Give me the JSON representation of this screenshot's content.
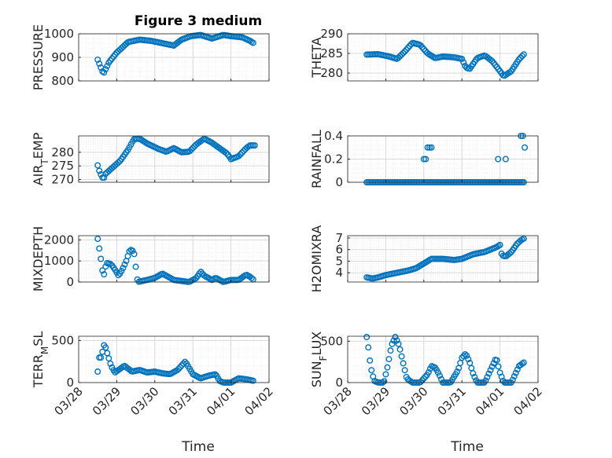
{
  "figure": {
    "title": "Figure 3 medium",
    "xlabel": "Time",
    "x_tick_labels": [
      "03/28",
      "03/29",
      "03/30",
      "03/31",
      "04/01",
      "04/02"
    ],
    "marker_color": "#0072BD",
    "grid_color": "#d9d9d9",
    "frame_color": "#262626",
    "x_range_days": [
      0,
      5
    ]
  },
  "chart_data": [
    {
      "type": "scatter",
      "title": "Figure 3 medium",
      "ylabel": "PRESSURE",
      "ylabel_parts": [
        {
          "t": "PRESSURE"
        }
      ],
      "ylim": [
        800,
        1000
      ],
      "yticks": [
        800,
        900,
        1000
      ],
      "yticklabels": [
        "800",
        "900",
        "1000"
      ],
      "grid": true,
      "x_anchors": [
        [
          0.5,
          890
        ],
        [
          0.55,
          870
        ],
        [
          0.6,
          850
        ],
        [
          0.65,
          830
        ],
        [
          0.8,
          880
        ],
        [
          1.0,
          920
        ],
        [
          1.3,
          965
        ],
        [
          1.6,
          975
        ],
        [
          1.9,
          970
        ],
        [
          2.2,
          960
        ],
        [
          2.5,
          950
        ],
        [
          2.7,
          975
        ],
        [
          2.95,
          990
        ],
        [
          3.2,
          995
        ],
        [
          3.5,
          980
        ],
        [
          3.8,
          995
        ],
        [
          4.0,
          990
        ],
        [
          4.3,
          985
        ],
        [
          4.5,
          970
        ],
        [
          4.6,
          960
        ]
      ]
    },
    {
      "type": "scatter",
      "title": "",
      "ylabel": "THETA",
      "ylabel_parts": [
        {
          "t": "THETA"
        }
      ],
      "ylim": [
        278,
        290
      ],
      "yticks": [
        280,
        285,
        290
      ],
      "yticklabels": [
        "280",
        "285",
        "290"
      ],
      "grid": true,
      "x_anchors": [
        [
          0.5,
          284.7
        ],
        [
          0.8,
          284.8
        ],
        [
          1.1,
          284.2
        ],
        [
          1.3,
          283.6
        ],
        [
          1.5,
          285.5
        ],
        [
          1.7,
          287.7
        ],
        [
          1.9,
          287.2
        ],
        [
          2.1,
          285.0
        ],
        [
          2.3,
          283.8
        ],
        [
          2.5,
          284.2
        ],
        [
          2.8,
          284.0
        ],
        [
          3.0,
          283.6
        ],
        [
          3.1,
          281.5
        ],
        [
          3.2,
          281.0
        ],
        [
          3.4,
          283.8
        ],
        [
          3.6,
          284.5
        ],
        [
          3.8,
          283.0
        ],
        [
          4.0,
          280.5
        ],
        [
          4.1,
          279.2
        ],
        [
          4.3,
          280.5
        ],
        [
          4.5,
          283.5
        ],
        [
          4.65,
          285.0
        ]
      ]
    },
    {
      "type": "scatter",
      "title": "",
      "ylabel": "AIR_TEMP",
      "ylabel_parts": [
        {
          "t": "AIR"
        },
        {
          "t": "T",
          "sub": true
        },
        {
          "t": "EMP"
        }
      ],
      "ylim": [
        269,
        286
      ],
      "yticks": [
        270,
        275,
        280
      ],
      "yticklabels": [
        "270",
        "275",
        "280"
      ],
      "grid": true,
      "x_anchors": [
        [
          0.5,
          275.2
        ],
        [
          0.55,
          272.8
        ],
        [
          0.65,
          270.0
        ],
        [
          0.7,
          272.0
        ],
        [
          0.9,
          274.5
        ],
        [
          1.1,
          277.0
        ],
        [
          1.3,
          281.0
        ],
        [
          1.45,
          284.8
        ],
        [
          1.6,
          285.0
        ],
        [
          1.8,
          283.2
        ],
        [
          2.1,
          281.2
        ],
        [
          2.3,
          280.2
        ],
        [
          2.5,
          281.5
        ],
        [
          2.7,
          280.0
        ],
        [
          2.9,
          280.2
        ],
        [
          3.1,
          283.0
        ],
        [
          3.3,
          285.0
        ],
        [
          3.5,
          283.5
        ],
        [
          3.7,
          281.5
        ],
        [
          3.9,
          279.5
        ],
        [
          4.0,
          277.5
        ],
        [
          4.2,
          278.5
        ],
        [
          4.4,
          281.5
        ],
        [
          4.5,
          282.5
        ],
        [
          4.65,
          282.5
        ]
      ]
    },
    {
      "type": "scatter",
      "title": "",
      "ylabel": "RAINFALL",
      "ylabel_parts": [
        {
          "t": "RAINFALL"
        }
      ],
      "ylim": [
        0,
        0.4
      ],
      "yticks": [
        0,
        0.2,
        0.4
      ],
      "yticklabels": [
        "0",
        "0.2",
        "0.4"
      ],
      "grid": true,
      "x_anchors": [
        [
          0.5,
          0
        ],
        [
          4.65,
          0
        ]
      ],
      "extra_points": [
        [
          2.0,
          0.2
        ],
        [
          2.05,
          0.2
        ],
        [
          2.1,
          0.3
        ],
        [
          2.15,
          0.3
        ],
        [
          2.2,
          0.3
        ],
        [
          3.95,
          0.2
        ],
        [
          4.15,
          0.2
        ],
        [
          4.55,
          0.4
        ],
        [
          4.6,
          0.4
        ],
        [
          4.65,
          0.3
        ]
      ]
    },
    {
      "type": "scatter",
      "title": "",
      "ylabel": "MIXDEPTH",
      "ylabel_parts": [
        {
          "t": "MIXDEPTH"
        }
      ],
      "ylim": [
        0,
        2200
      ],
      "yticks": [
        0,
        1000,
        2000
      ],
      "yticklabels": [
        "0",
        "1000",
        "2000"
      ],
      "grid": true,
      "x_anchors": [
        [
          0.5,
          2050
        ],
        [
          0.55,
          1500
        ],
        [
          0.6,
          900
        ],
        [
          0.65,
          200
        ],
        [
          0.7,
          700
        ],
        [
          0.75,
          900
        ],
        [
          0.85,
          850
        ],
        [
          0.95,
          600
        ],
        [
          1.05,
          300
        ],
        [
          1.15,
          600
        ],
        [
          1.25,
          1000
        ],
        [
          1.35,
          1550
        ],
        [
          1.45,
          1450
        ],
        [
          1.55,
          0
        ],
        [
          1.8,
          100
        ],
        [
          2.0,
          200
        ],
        [
          2.2,
          400
        ],
        [
          2.3,
          300
        ],
        [
          2.5,
          100
        ],
        [
          2.7,
          50
        ],
        [
          2.9,
          0
        ],
        [
          3.1,
          200
        ],
        [
          3.2,
          500
        ],
        [
          3.3,
          300
        ],
        [
          3.5,
          100
        ],
        [
          3.6,
          200
        ],
        [
          3.8,
          0
        ],
        [
          4.0,
          100
        ],
        [
          4.2,
          100
        ],
        [
          4.4,
          350
        ],
        [
          4.5,
          250
        ],
        [
          4.6,
          100
        ]
      ]
    },
    {
      "type": "scatter",
      "title": "",
      "ylabel": "H2OMIXRA",
      "ylabel_parts": [
        {
          "t": "H2OMIXRA"
        }
      ],
      "ylim": [
        3.2,
        7.2
      ],
      "yticks": [
        4,
        5,
        6,
        7
      ],
      "yticklabels": [
        "4",
        "5",
        "6",
        "7"
      ],
      "grid": true,
      "x_anchors": [
        [
          0.5,
          3.6
        ],
        [
          0.65,
          3.5
        ],
        [
          0.8,
          3.6
        ],
        [
          1.0,
          3.8
        ],
        [
          1.3,
          4.0
        ],
        [
          1.6,
          4.2
        ],
        [
          1.8,
          4.4
        ],
        [
          2.0,
          4.8
        ],
        [
          2.2,
          5.2
        ],
        [
          2.5,
          5.2
        ],
        [
          2.8,
          5.1
        ],
        [
          3.0,
          5.2
        ],
        [
          3.3,
          5.6
        ],
        [
          3.6,
          5.8
        ],
        [
          3.9,
          6.2
        ],
        [
          4.0,
          6.4
        ],
        [
          4.05,
          5.5
        ],
        [
          4.15,
          5.4
        ],
        [
          4.3,
          5.8
        ],
        [
          4.45,
          6.5
        ],
        [
          4.55,
          6.8
        ],
        [
          4.65,
          7.0
        ]
      ]
    },
    {
      "type": "scatter",
      "title": "",
      "ylabel": "TERR_MSL",
      "ylabel_parts": [
        {
          "t": "TERR"
        },
        {
          "t": "M",
          "sub": true
        },
        {
          "t": "SL"
        }
      ],
      "ylim": [
        0,
        550
      ],
      "yticks": [
        0,
        500
      ],
      "yticklabels": [
        "0",
        "500"
      ],
      "grid": true,
      "x_anchors": [
        [
          0.5,
          130
        ],
        [
          0.55,
          330
        ],
        [
          0.6,
          280
        ],
        [
          0.65,
          450
        ],
        [
          0.7,
          430
        ],
        [
          0.75,
          350
        ],
        [
          0.85,
          200
        ],
        [
          0.95,
          120
        ],
        [
          1.05,
          150
        ],
        [
          1.2,
          200
        ],
        [
          1.4,
          130
        ],
        [
          1.6,
          150
        ],
        [
          1.8,
          120
        ],
        [
          2.0,
          130
        ],
        [
          2.2,
          110
        ],
        [
          2.4,
          100
        ],
        [
          2.6,
          150
        ],
        [
          2.8,
          250
        ],
        [
          3.0,
          100
        ],
        [
          3.2,
          50
        ],
        [
          3.4,
          80
        ],
        [
          3.6,
          100
        ],
        [
          3.7,
          20
        ],
        [
          3.8,
          0
        ],
        [
          4.0,
          0
        ],
        [
          4.2,
          50
        ],
        [
          4.4,
          40
        ],
        [
          4.6,
          20
        ]
      ]
    },
    {
      "type": "scatter",
      "title": "",
      "ylabel": "SUN_FLUX",
      "ylabel_parts": [
        {
          "t": "SUN"
        },
        {
          "t": "F",
          "sub": true
        },
        {
          "t": "LUX"
        }
      ],
      "ylim": [
        0,
        560
      ],
      "yticks": [
        0,
        500
      ],
      "yticklabels": [
        "0",
        "500"
      ],
      "grid": true,
      "x_anchors": [
        [
          0.5,
          550
        ],
        [
          0.55,
          400
        ],
        [
          0.6,
          200
        ],
        [
          0.65,
          100
        ],
        [
          0.7,
          20
        ],
        [
          0.8,
          0
        ],
        [
          0.95,
          0
        ],
        [
          1.05,
          200
        ],
        [
          1.15,
          450
        ],
        [
          1.25,
          550
        ],
        [
          1.35,
          450
        ],
        [
          1.45,
          250
        ],
        [
          1.55,
          50
        ],
        [
          1.7,
          0
        ],
        [
          1.9,
          0
        ],
        [
          2.1,
          100
        ],
        [
          2.2,
          200
        ],
        [
          2.3,
          180
        ],
        [
          2.4,
          100
        ],
        [
          2.5,
          0
        ],
        [
          2.7,
          0
        ],
        [
          2.9,
          150
        ],
        [
          3.0,
          300
        ],
        [
          3.1,
          350
        ],
        [
          3.2,
          250
        ],
        [
          3.3,
          100
        ],
        [
          3.4,
          0
        ],
        [
          3.6,
          0
        ],
        [
          3.8,
          200
        ],
        [
          3.9,
          300
        ],
        [
          4.0,
          120
        ],
        [
          4.1,
          0
        ],
        [
          4.3,
          0
        ],
        [
          4.5,
          200
        ],
        [
          4.65,
          250
        ]
      ]
    }
  ]
}
